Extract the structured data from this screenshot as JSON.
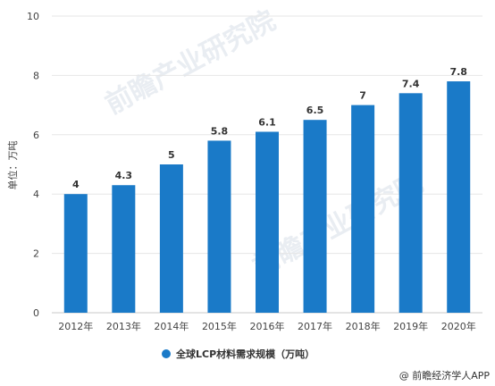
{
  "chart_data": {
    "type": "bar",
    "categories": [
      "2012年",
      "2013年",
      "2014年",
      "2015年",
      "2016年",
      "2017年",
      "2018年",
      "2019年",
      "2020年"
    ],
    "series": [
      {
        "name": "全球LCP材料需求规模（万吨）",
        "values": [
          4,
          4.3,
          5,
          5.8,
          6.1,
          6.5,
          7,
          7.4,
          7.8
        ]
      }
    ],
    "data_labels": [
      "4",
      "4.3",
      "5",
      "5.8",
      "6.1",
      "6.5",
      "7",
      "7.4",
      "7.8"
    ],
    "ylabel": "单位：万吨",
    "ylim": [
      0,
      10
    ],
    "yticks": [
      0,
      2,
      4,
      6,
      8,
      10
    ],
    "grid": true,
    "legend": "bottom",
    "colors": {
      "bar": "#1a7ac8"
    }
  },
  "watermark": "前瞻产业研究院",
  "source": "@ 前瞻经济学人APP"
}
